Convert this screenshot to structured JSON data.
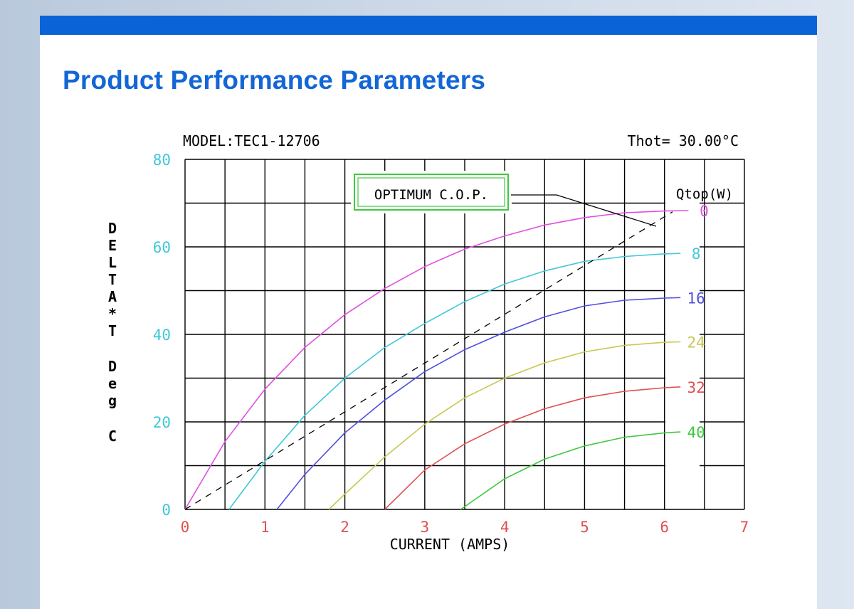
{
  "page": {
    "title": "Product Performance Parameters",
    "colors": {
      "topbar": "#0a64d8",
      "title": "#1266d6"
    }
  },
  "chart_data": {
    "type": "line",
    "model_label": "MODEL:TEC1-12706",
    "thot_label": "Thot= 30.00°C",
    "xlabel": "CURRENT (AMPS)",
    "ylabel": "DELTA*T Deg C",
    "xlim": [
      0,
      7
    ],
    "ylim": [
      0,
      80
    ],
    "x_ticks": [
      "0",
      "1",
      "2",
      "3",
      "4",
      "5",
      "6",
      "7"
    ],
    "y_ticks": [
      "0",
      "20",
      "40",
      "60",
      "80"
    ],
    "grid": true,
    "legend_title": "Qtop(W)",
    "optimum_box_label": "OPTIMUM C.O.P.",
    "series": [
      {
        "name": "0",
        "color": "#e050e0",
        "x": [
          0.0,
          0.5,
          1.0,
          1.5,
          2.0,
          2.5,
          3.0,
          3.5,
          4.0,
          4.5,
          5.0,
          5.5,
          6.0,
          6.3
        ],
        "y": [
          0.0,
          15.5,
          27.5,
          37.0,
          44.5,
          50.5,
          55.5,
          59.5,
          62.5,
          65.0,
          66.7,
          67.8,
          68.2,
          68.3
        ]
      },
      {
        "name": "8",
        "color": "#40c8d8",
        "x": [
          0.55,
          1.0,
          1.5,
          2.0,
          2.5,
          3.0,
          3.5,
          4.0,
          4.5,
          5.0,
          5.5,
          6.0,
          6.2
        ],
        "y": [
          0.0,
          11.0,
          21.5,
          30.0,
          37.0,
          42.5,
          47.5,
          51.5,
          54.5,
          56.7,
          57.8,
          58.4,
          58.5
        ]
      },
      {
        "name": "16",
        "color": "#5050e0",
        "x": [
          1.15,
          1.5,
          2.0,
          2.5,
          3.0,
          3.5,
          4.0,
          4.5,
          5.0,
          5.5,
          6.0,
          6.2
        ],
        "y": [
          0.0,
          8.0,
          17.5,
          25.0,
          31.5,
          36.5,
          40.5,
          44.0,
          46.5,
          47.8,
          48.3,
          48.4
        ]
      },
      {
        "name": "24",
        "color": "#c8c850",
        "x": [
          1.8,
          2.0,
          2.5,
          3.0,
          3.5,
          4.0,
          4.5,
          5.0,
          5.5,
          6.0,
          6.2
        ],
        "y": [
          0.0,
          3.5,
          12.0,
          19.5,
          25.5,
          30.0,
          33.5,
          36.0,
          37.5,
          38.2,
          38.3
        ]
      },
      {
        "name": "32",
        "color": "#e05050",
        "x": [
          2.5,
          3.0,
          3.5,
          4.0,
          4.5,
          5.0,
          5.5,
          6.0,
          6.2
        ],
        "y": [
          0.0,
          9.0,
          15.0,
          19.5,
          23.0,
          25.5,
          27.0,
          27.8,
          28.0
        ]
      },
      {
        "name": "40",
        "color": "#40c840",
        "x": [
          3.45,
          4.0,
          4.5,
          5.0,
          5.5,
          6.0,
          6.2
        ],
        "y": [
          0.0,
          7.0,
          11.5,
          14.5,
          16.5,
          17.5,
          17.7
        ]
      }
    ],
    "optimum_line": {
      "name": "OPTIMUM C.O.P.",
      "x": [
        0.0,
        6.1
      ],
      "y": [
        0.0,
        68.0
      ]
    }
  }
}
